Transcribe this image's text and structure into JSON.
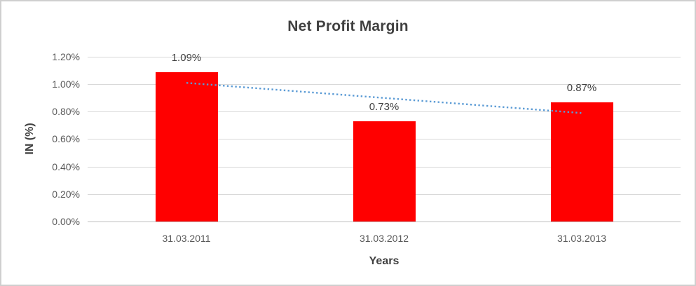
{
  "chart_data": {
    "type": "bar",
    "title": "Net Profit Margin",
    "xlabel": "Years",
    "ylabel": "IN (%)",
    "categories": [
      "31.03.2011",
      "31.03.2012",
      "31.03.2013"
    ],
    "values": [
      1.09,
      0.73,
      0.87
    ],
    "value_labels": [
      "1.09%",
      "0.73%",
      "0.87%"
    ],
    "ylim": [
      0,
      1.2
    ],
    "ytick_step": 0.2,
    "ytick_labels": [
      "0.00%",
      "0.20%",
      "0.40%",
      "0.60%",
      "0.80%",
      "1.00%",
      "1.20%"
    ],
    "grid": true,
    "legend": false,
    "bar_color": "#FF0000",
    "trendline": {
      "type": "linear",
      "style": "dotted",
      "color": "#5B9BD5",
      "start_value": 1.01,
      "end_value": 0.79
    },
    "colors": {
      "title": "#404040",
      "axis_text": "#595959",
      "gridline": "#D9D9D9",
      "axis_line": "#BFBFBF",
      "frame_border": "#CFCFCF"
    }
  }
}
